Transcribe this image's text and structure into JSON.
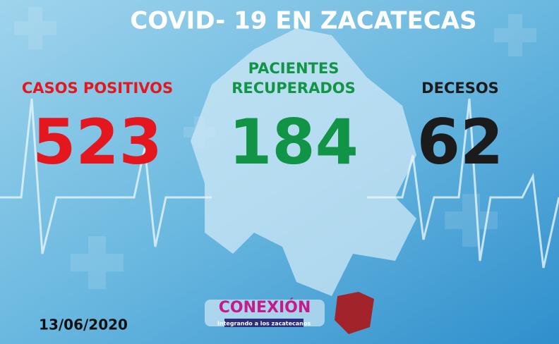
{
  "header": {
    "title": "COVID- 19 EN ZACATECAS"
  },
  "stats": [
    {
      "label": [
        "CASOS POSITIVOS"
      ],
      "value": 523,
      "color": "#e3171d"
    },
    {
      "label": [
        "PACIENTES",
        "RECUPERADOS"
      ],
      "value": 184,
      "color": "#129447"
    },
    {
      "label": [
        "DECESOS"
      ],
      "value": 62,
      "color": "#1b1b1b"
    }
  ],
  "footer": {
    "date": "13/06/2020",
    "logo": "CONEXIÓN",
    "slogan": "Integrando a los zacatecanos"
  }
}
